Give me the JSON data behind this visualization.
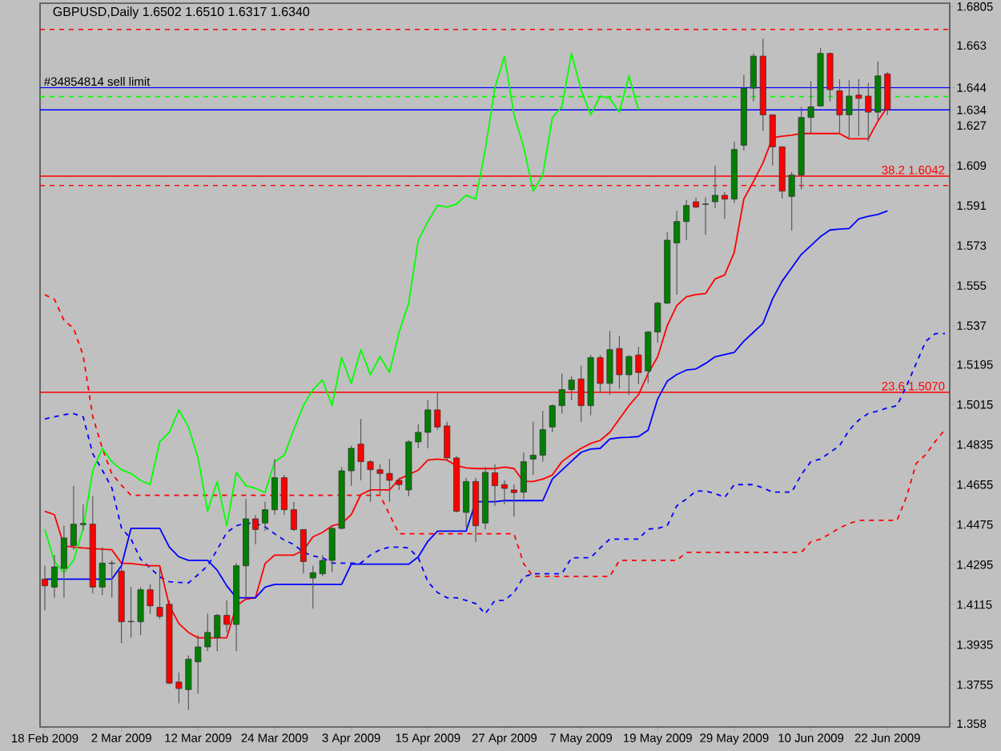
{
  "chart_data": {
    "type": "candlestick",
    "title": "GBPUSD,Daily  1.6502 1.6510 1.6317 1.6340",
    "categories": [
      "18 Feb 2009",
      null,
      null,
      null,
      null,
      null,
      null,
      null,
      "2 Mar 2009",
      null,
      null,
      null,
      null,
      null,
      null,
      null,
      "12 Mar 2009",
      null,
      null,
      null,
      null,
      null,
      null,
      null,
      "24 Mar 2009",
      null,
      null,
      null,
      null,
      null,
      null,
      null,
      "3 Apr 2009",
      null,
      null,
      null,
      null,
      null,
      null,
      null,
      "15 Apr 2009",
      null,
      null,
      null,
      null,
      null,
      null,
      null,
      "27 Apr 2009",
      null,
      null,
      null,
      null,
      null,
      null,
      null,
      "7 May 2009",
      null,
      null,
      null,
      null,
      null,
      null,
      null,
      "19 May 2009",
      null,
      null,
      null,
      null,
      null,
      null,
      null,
      "29 May 2009",
      null,
      null,
      null,
      null,
      null,
      null,
      null,
      "10 Jun 2009",
      null,
      null,
      null,
      null,
      null,
      null,
      null,
      "22 Jun 2009",
      null,
      null,
      null,
      null,
      null,
      null
    ],
    "ohlc": [
      [
        1.423,
        1.429,
        1.409,
        1.42
      ],
      [
        1.4194,
        1.4338,
        1.4146,
        1.4285
      ],
      [
        1.4278,
        1.447,
        1.4146,
        1.4415
      ],
      [
        1.4381,
        1.465,
        1.4362,
        1.4477
      ],
      [
        1.4475,
        1.4566,
        1.445,
        1.448
      ],
      [
        1.4477,
        1.4602,
        1.4165,
        1.4194
      ],
      [
        1.4194,
        1.4374,
        1.4158,
        1.4302
      ],
      [
        1.43,
        1.4314,
        1.4146,
        1.4302
      ],
      [
        1.4266,
        1.429,
        1.3942,
        1.4038
      ],
      [
        1.404,
        1.4194,
        1.3966,
        1.4038
      ],
      [
        1.4038,
        1.4194,
        1.3978,
        1.4182
      ],
      [
        1.4182,
        1.4206,
        1.4074,
        1.411
      ],
      [
        1.4103,
        1.4278,
        1.405,
        1.4062
      ],
      [
        1.4117,
        1.4134,
        1.3758,
        1.3762
      ],
      [
        1.3767,
        1.381,
        1.3671,
        1.3738
      ],
      [
        1.3733,
        1.3887,
        1.3642,
        1.387
      ],
      [
        1.3858,
        1.3978,
        1.3714,
        1.3925
      ],
      [
        1.3925,
        1.4074,
        1.3906,
        1.399
      ],
      [
        1.3966,
        1.4074,
        1.3906,
        1.4067
      ],
      [
        1.4067,
        1.4134,
        1.399,
        1.4026
      ],
      [
        1.4026,
        1.4302,
        1.3906,
        1.429
      ],
      [
        1.429,
        1.459,
        1.4146,
        1.4501
      ],
      [
        1.4501,
        1.4518,
        1.4386,
        1.4453
      ],
      [
        1.4482,
        1.4578,
        1.4446,
        1.4542
      ],
      [
        1.4542,
        1.477,
        1.4518,
        1.4686
      ],
      [
        1.4686,
        1.4698,
        1.4518,
        1.4542
      ],
      [
        1.4542,
        1.4578,
        1.4446,
        1.4453
      ],
      [
        1.4453,
        1.4453,
        1.4254,
        1.4309
      ],
      [
        1.4235,
        1.429,
        1.4098,
        1.4259
      ],
      [
        1.4254,
        1.4338,
        1.4242,
        1.4314
      ],
      [
        1.4314,
        1.447,
        1.4261,
        1.4458
      ],
      [
        1.4458,
        1.4734,
        1.4453,
        1.4717
      ],
      [
        1.4717,
        1.483,
        1.465,
        1.4818
      ],
      [
        1.4837,
        1.495,
        1.4674,
        1.4758
      ],
      [
        1.4758,
        1.4765,
        1.4578,
        1.4722
      ],
      [
        1.4722,
        1.4746,
        1.4607,
        1.4705
      ],
      [
        1.4705,
        1.477,
        1.4578,
        1.4674
      ],
      [
        1.4674,
        1.4686,
        1.4631,
        1.4655
      ],
      [
        1.4631,
        1.4854,
        1.4602,
        1.4847
      ],
      [
        1.4847,
        1.4926,
        1.4818,
        1.489
      ],
      [
        1.489,
        1.5034,
        1.4818,
        1.4991
      ],
      [
        1.4991,
        1.507,
        1.4902,
        1.4914
      ],
      [
        1.4919,
        1.4938,
        1.4765,
        1.4775
      ],
      [
        1.4775,
        1.4782,
        1.453,
        1.4535
      ],
      [
        1.453,
        1.4686,
        1.4463,
        1.4669
      ],
      [
        1.4669,
        1.4686,
        1.4398,
        1.447
      ],
      [
        1.4482,
        1.4734,
        1.4453,
        1.471
      ],
      [
        1.4708,
        1.4746,
        1.456,
        1.465
      ],
      [
        1.4655,
        1.4674,
        1.4566,
        1.4638
      ],
      [
        1.4631,
        1.4655,
        1.4511,
        1.4619
      ],
      [
        1.4621,
        1.4799,
        1.459,
        1.4758
      ],
      [
        1.477,
        1.4938,
        1.4698,
        1.4787
      ],
      [
        1.4787,
        1.4986,
        1.4758,
        1.4902
      ],
      [
        1.4914,
        1.5015,
        1.489,
        1.501
      ],
      [
        1.501,
        1.5154,
        1.4974,
        1.5082
      ],
      [
        1.5082,
        1.5142,
        1.5034,
        1.5125
      ],
      [
        1.513,
        1.519,
        1.4938,
        1.501
      ],
      [
        1.501,
        1.5238,
        1.4967,
        1.5226
      ],
      [
        1.5226,
        1.5238,
        1.507,
        1.511
      ],
      [
        1.511,
        1.5346,
        1.5058,
        1.5262
      ],
      [
        1.5267,
        1.5322,
        1.5086,
        1.5149
      ],
      [
        1.5149,
        1.5238,
        1.5058,
        1.5231
      ],
      [
        1.5238,
        1.5274,
        1.5106,
        1.5159
      ],
      [
        1.5166,
        1.5346,
        1.5111,
        1.5341
      ],
      [
        1.5341,
        1.5478,
        1.5293,
        1.5471
      ],
      [
        1.5471,
        1.579,
        1.5466,
        1.5754
      ],
      [
        1.5742,
        1.5886,
        1.5509,
        1.5838
      ],
      [
        1.5838,
        1.5934,
        1.5754,
        1.591
      ],
      [
        1.5927,
        1.5946,
        1.5898,
        1.5903
      ],
      [
        1.5915,
        1.5946,
        1.5778,
        1.5917
      ],
      [
        1.5927,
        1.609,
        1.5898,
        1.5956
      ],
      [
        1.5956,
        1.597,
        1.585,
        1.5939
      ],
      [
        1.5939,
        1.6198,
        1.5922,
        1.6162
      ],
      [
        1.6181,
        1.6498,
        1.6157,
        1.6438
      ],
      [
        1.6438,
        1.6594,
        1.6378,
        1.6582
      ],
      [
        1.6582,
        1.6661,
        1.6246,
        1.6318
      ],
      [
        1.6318,
        1.6318,
        1.609,
        1.6174
      ],
      [
        1.6174,
        1.6174,
        1.5941,
        1.5975
      ],
      [
        1.5951,
        1.6061,
        1.5797,
        1.6047
      ],
      [
        1.6047,
        1.6354,
        1.5982,
        1.6306
      ],
      [
        1.6306,
        1.6469,
        1.6234,
        1.6354
      ],
      [
        1.6358,
        1.6618,
        1.6354,
        1.6594
      ],
      [
        1.6594,
        1.6599,
        1.6378,
        1.6431
      ],
      [
        1.6426,
        1.6478,
        1.6234,
        1.6318
      ],
      [
        1.6318,
        1.6474,
        1.6215,
        1.6402
      ],
      [
        1.6407,
        1.6478,
        1.6222,
        1.6392
      ],
      [
        1.6402,
        1.6462,
        1.6198,
        1.633
      ],
      [
        1.633,
        1.6558,
        1.6294,
        1.6493
      ],
      [
        1.6502,
        1.651,
        1.6317,
        1.634
      ],
      null,
      null,
      null,
      null,
      null,
      null
    ],
    "colors": [
      "#ff0000",
      "#008000",
      "#008000",
      "#008000",
      "#008000",
      "#ff0000",
      "#008000",
      "#008000",
      "#ff0000",
      "#ff0000",
      "#008000",
      "#ff0000",
      "#ff0000",
      "#ff0000",
      "#ff0000",
      "#008000",
      "#008000",
      "#008000",
      "#008000",
      "#ff0000",
      "#008000",
      "#008000",
      "#ff0000",
      "#008000",
      "#008000",
      "#ff0000",
      "#ff0000",
      "#ff0000",
      "#008000",
      "#008000",
      "#008000",
      "#008000",
      "#008000",
      "#ff0000",
      "#ff0000",
      "#ff0000",
      "#ff0000",
      "#ff0000",
      "#008000",
      "#008000",
      "#008000",
      "#ff0000",
      "#ff0000",
      "#ff0000",
      "#008000",
      "#ff0000",
      "#008000",
      "#ff0000",
      "#ff0000",
      "#ff0000",
      "#008000",
      "#008000",
      "#008000",
      "#008000",
      "#008000",
      "#008000",
      "#ff0000",
      "#008000",
      "#ff0000",
      "#008000",
      "#ff0000",
      "#008000",
      "#ff0000",
      "#008000",
      "#008000",
      "#008000",
      "#008000",
      "#008000",
      "#ff0000",
      "#008000",
      "#008000",
      "#ff0000",
      "#008000",
      "#008000",
      "#008000",
      "#ff0000",
      "#ff0000",
      "#ff0000",
      "#008000",
      "#008000",
      "#008000",
      "#008000",
      "#ff0000",
      "#ff0000",
      "#008000",
      "#ff0000",
      "#ff0000",
      "#008000",
      "#ff0000",
      null,
      null,
      null,
      null,
      null,
      null
    ],
    "series": [
      {
        "type": "line",
        "color": "#ff0000",
        "line_style": "dashed",
        "values": [
          1.5509,
          1.5488,
          1.5394,
          1.5358,
          1.5236,
          1.4962,
          1.4818,
          1.4703,
          1.4652,
          1.4607,
          1.4607,
          1.4607,
          1.4607,
          1.4607,
          1.4607,
          1.4607,
          1.4607,
          1.4607,
          1.4607,
          1.4607,
          1.4607,
          1.4607,
          1.4607,
          1.4607,
          1.4607,
          1.4607,
          1.4607,
          1.4607,
          1.4607,
          1.4607,
          1.4607,
          1.4607,
          1.4607,
          1.4607,
          1.4607,
          1.4607,
          1.452,
          1.4434,
          1.4434,
          1.4434,
          1.4434,
          1.4434,
          1.4434,
          1.4434,
          1.4434,
          1.4434,
          1.4434,
          1.4434,
          1.4434,
          1.4434,
          1.43,
          1.4242,
          1.4242,
          1.4242,
          1.4242,
          1.4242,
          1.4242,
          1.4242,
          1.4242,
          1.4242,
          1.4314,
          1.4314,
          1.4314,
          1.4314,
          1.4314,
          1.4314,
          1.4314,
          1.435,
          1.435,
          1.435,
          1.435,
          1.435,
          1.435,
          1.435,
          1.435,
          1.435,
          1.435,
          1.435,
          1.435,
          1.435,
          1.4398,
          1.441,
          1.4434,
          1.446,
          1.448,
          1.4494,
          1.4494,
          1.4494,
          1.4494,
          1.4494,
          1.4602,
          1.475,
          1.479,
          1.485,
          1.4902
        ]
      },
      {
        "type": "line",
        "color": "#0000ff",
        "line_style": "dashed",
        "values": [
          1.495,
          1.496,
          1.497,
          1.4974,
          1.496,
          1.4794,
          1.472,
          1.464,
          1.446,
          1.441,
          1.432,
          1.428,
          1.424,
          1.4218,
          1.4215,
          1.4213,
          1.425,
          1.429,
          1.4362,
          1.444,
          1.447,
          1.4482,
          1.448,
          1.4465,
          1.4434,
          1.4405,
          1.4386,
          1.435,
          1.4334,
          1.4326,
          1.4302,
          1.4302,
          1.4302,
          1.4302,
          1.4338,
          1.4362,
          1.4374,
          1.4374,
          1.437,
          1.4326,
          1.4218,
          1.417,
          1.4146,
          1.4146,
          1.4134,
          1.412,
          1.4074,
          1.4134,
          1.4134,
          1.417,
          1.424,
          1.4254,
          1.4254,
          1.4254,
          1.4254,
          1.4326,
          1.4326,
          1.4326,
          1.437,
          1.441,
          1.441,
          1.441,
          1.441,
          1.4455,
          1.4458,
          1.447,
          1.456,
          1.459,
          1.4626,
          1.4626,
          1.4615,
          1.4597,
          1.4655,
          1.4655,
          1.4655,
          1.464,
          1.4621,
          1.4621,
          1.4621,
          1.47,
          1.4758,
          1.477,
          1.48,
          1.483,
          1.49,
          1.4945,
          1.4975,
          1.4986,
          1.5,
          1.501,
          1.51,
          1.52,
          1.53,
          1.5334,
          1.5334
        ]
      },
      {
        "type": "line",
        "color": "#ff0000",
        "values": [
          1.4535,
          1.452,
          1.438,
          1.4374,
          1.437,
          1.4367,
          1.4365,
          1.4362,
          1.4302,
          1.43,
          1.4295,
          1.429,
          1.429,
          1.411,
          1.403,
          1.399,
          1.3966,
          1.3966,
          1.3966,
          1.3966,
          1.411,
          1.414,
          1.4146,
          1.43,
          1.4338,
          1.4338,
          1.4338,
          1.436,
          1.442,
          1.444,
          1.447,
          1.448,
          1.452,
          1.461,
          1.4631,
          1.4631,
          1.4631,
          1.468,
          1.47,
          1.472,
          1.4765,
          1.477,
          1.4765,
          1.474,
          1.473,
          1.4727,
          1.4727,
          1.4727,
          1.4734,
          1.4727,
          1.4669,
          1.4669,
          1.468,
          1.4698,
          1.4758,
          1.479,
          1.4818,
          1.484,
          1.4854,
          1.489,
          1.495,
          1.501,
          1.506,
          1.5154,
          1.523,
          1.537,
          1.546,
          1.55,
          1.551,
          1.5514,
          1.558,
          1.5598,
          1.57,
          1.594,
          1.6018,
          1.6102,
          1.6215,
          1.6222,
          1.6226,
          1.6234,
          1.6234,
          1.6234,
          1.6234,
          1.6234,
          1.621,
          1.621,
          1.621,
          1.629,
          1.6354,
          null,
          null,
          null,
          null,
          null,
          null
        ]
      },
      {
        "type": "line",
        "color": "#0000ff",
        "values": [
          1.423,
          1.423,
          1.423,
          1.423,
          1.423,
          1.423,
          1.423,
          1.423,
          1.429,
          1.4458,
          1.4458,
          1.4458,
          1.4458,
          1.4374,
          1.433,
          1.4314,
          1.4314,
          1.4314,
          1.427,
          1.42,
          1.4146,
          1.4146,
          1.4146,
          1.4194,
          1.4206,
          1.4206,
          1.4206,
          1.4206,
          1.4206,
          1.4206,
          1.4206,
          1.4206,
          1.4297,
          1.4297,
          1.4297,
          1.4297,
          1.4297,
          1.4297,
          1.4297,
          1.433,
          1.44,
          1.4446,
          1.4446,
          1.4446,
          1.4446,
          1.4578,
          1.4578,
          1.4578,
          1.4583,
          1.4583,
          1.4583,
          1.4583,
          1.4583,
          1.468,
          1.472,
          1.476,
          1.48,
          1.4815,
          1.4818,
          1.486,
          1.4866,
          1.4868,
          1.4871,
          1.49,
          1.504,
          1.512,
          1.515,
          1.517,
          1.5175,
          1.52,
          1.523,
          1.524,
          1.525,
          1.53,
          1.534,
          1.538,
          1.549,
          1.557,
          1.563,
          1.569,
          1.573,
          1.577,
          1.58,
          1.5804,
          1.5807,
          1.585,
          1.5862,
          1.587,
          1.5886,
          null,
          null,
          null,
          null,
          null,
          null
        ]
      },
      {
        "type": "line",
        "color": "#00ff00",
        "values": [
          1.4453,
          1.4309,
          1.4259,
          1.4314,
          1.4458,
          1.4717,
          1.4818,
          1.4758,
          1.4722,
          1.4705,
          1.4674,
          1.4655,
          1.4847,
          1.489,
          1.4991,
          1.4914,
          1.4775,
          1.4535,
          1.4669,
          1.447,
          1.471,
          1.465,
          1.4638,
          1.4619,
          1.4758,
          1.4787,
          1.4902,
          1.501,
          1.5082,
          1.5125,
          1.501,
          1.5226,
          1.511,
          1.5262,
          1.5149,
          1.5231,
          1.5159,
          1.5341,
          1.5471,
          1.5754,
          1.5838,
          1.591,
          1.5903,
          1.5917,
          1.5956,
          1.5939,
          1.6162,
          1.6438,
          1.6582,
          1.6318,
          1.6174,
          1.5975,
          1.6047,
          1.6306,
          1.6354,
          1.6594,
          1.6431,
          1.6318,
          1.6402,
          1.6392,
          1.633,
          1.6493,
          1.634,
          null,
          null,
          null,
          null,
          null,
          null,
          null,
          null,
          null,
          null,
          null,
          null,
          null,
          null,
          null,
          null,
          null,
          null,
          null,
          null,
          null,
          null,
          null,
          null,
          null,
          null,
          null,
          null,
          null,
          null,
          null,
          null
        ]
      }
    ],
    "ylim": [
      1.3565,
      1.682
    ],
    "yticks": [
      1.6805,
      1.663,
      1.644,
      1.634,
      1.627,
      1.609,
      1.591,
      1.573,
      1.555,
      1.537,
      1.5195,
      1.5015,
      1.4835,
      1.4655,
      1.4475,
      1.4295,
      1.4115,
      1.3935,
      1.3755,
      1.358
    ],
    "ref_lines": [
      {
        "axis": "y",
        "value": 1.6702,
        "color": "#ff0000",
        "line_style": "dashed"
      },
      {
        "axis": "y",
        "value": 1.644,
        "color": "#0000ff"
      },
      {
        "axis": "y",
        "value": 1.64,
        "color": "#00ff00",
        "line_style": "dashed"
      },
      {
        "axis": "y",
        "value": 1.634,
        "color": "#0000ff"
      },
      {
        "axis": "y",
        "value": 1.6042,
        "color": "#ff0000",
        "label": "38.2 1.6042"
      },
      {
        "axis": "y",
        "value": 1.6,
        "color": "#ff0000",
        "line_style": "dashed"
      },
      {
        "axis": "y",
        "value": 1.507,
        "color": "#ff0000",
        "label": "23.6 1.5070"
      }
    ],
    "annotations": [
      {
        "text": "#34854814 sell limit",
        "x": "18 Feb 2009",
        "y": 1.644
      }
    ]
  }
}
